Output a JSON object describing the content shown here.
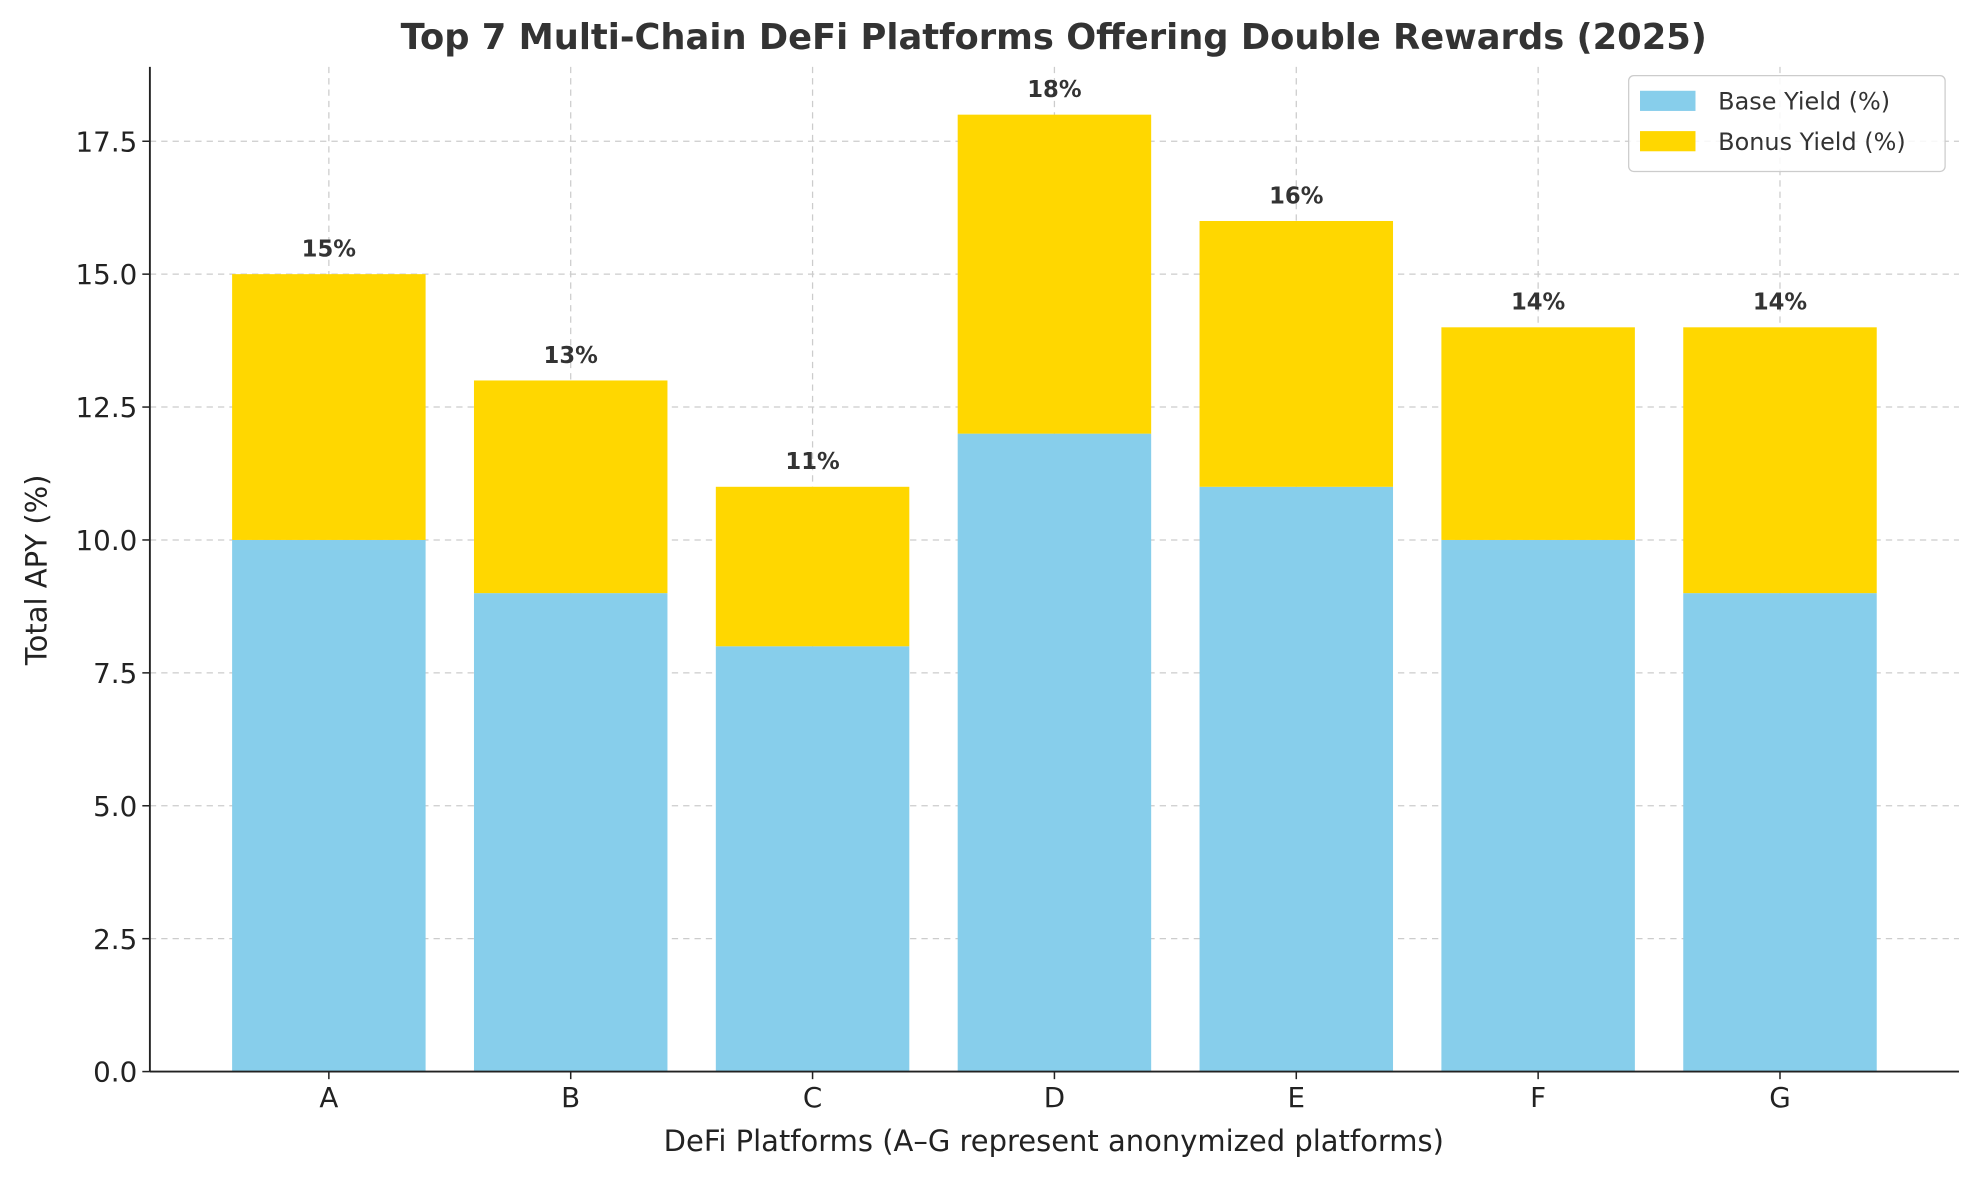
{
  "chart_data": {
    "type": "bar",
    "stacked": true,
    "title": "Top 7 Multi-Chain DeFi Platforms Offering Double Rewards (2025)",
    "xlabel": "DeFi Platforms (A–G represent anonymized platforms)",
    "ylabel": "Total APY (%)",
    "categories": [
      "A",
      "B",
      "C",
      "D",
      "E",
      "F",
      "G"
    ],
    "series": [
      {
        "name": "Base Yield (%)",
        "values": [
          10,
          9,
          8,
          12,
          11,
          10,
          9
        ],
        "color": "#87CEEB"
      },
      {
        "name": "Bonus Yield (%)",
        "values": [
          5,
          4,
          3,
          6,
          5,
          4,
          5
        ],
        "color": "#FFD700"
      }
    ],
    "data_labels": [
      "15%",
      "13%",
      "11%",
      "18%",
      "16%",
      "14%",
      "14%"
    ],
    "ylim": [
      0,
      18.9
    ],
    "yticks": [
      "0.0",
      "2.5",
      "5.0",
      "7.5",
      "10.0",
      "12.5",
      "15.0",
      "17.5"
    ],
    "grid": true,
    "legend_position": "top-right"
  }
}
